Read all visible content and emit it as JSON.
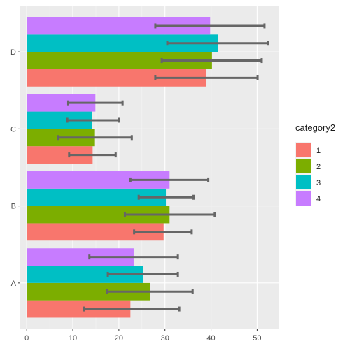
{
  "chart_data": {
    "type": "bar",
    "orientation": "horizontal",
    "title": "",
    "xlabel": "",
    "ylabel": "",
    "categories": [
      "A",
      "B",
      "C",
      "D"
    ],
    "xlim": [
      0,
      55
    ],
    "x_ticks": [
      0,
      10,
      20,
      30,
      40,
      50
    ],
    "grid": true,
    "legend": {
      "title": "category2",
      "position": "right"
    },
    "series": [
      {
        "name": "1",
        "color": "#F8766D",
        "values": [
          22.5,
          29.7,
          14.3,
          39.0
        ],
        "error_low": [
          12.4,
          23.3,
          9.2,
          27.9
        ],
        "error_high": [
          33.1,
          35.8,
          19.3,
          50.1
        ]
      },
      {
        "name": "2",
        "color": "#7CAE00",
        "values": [
          26.7,
          31.0,
          14.8,
          40.2
        ],
        "error_low": [
          17.4,
          21.3,
          6.8,
          29.3
        ],
        "error_high": [
          36.0,
          40.8,
          22.8,
          51.0
        ]
      },
      {
        "name": "3",
        "color": "#00BFC4",
        "values": [
          25.2,
          30.2,
          14.2,
          41.5
        ],
        "error_low": [
          17.6,
          24.3,
          8.8,
          30.5
        ],
        "error_high": [
          32.8,
          36.2,
          20.0,
          52.3
        ]
      },
      {
        "name": "4",
        "color": "#C77CFF",
        "values": [
          23.2,
          31.0,
          14.9,
          39.8
        ],
        "error_low": [
          13.6,
          22.5,
          9.0,
          27.9
        ],
        "error_high": [
          32.8,
          39.4,
          20.8,
          51.6
        ]
      }
    ]
  }
}
